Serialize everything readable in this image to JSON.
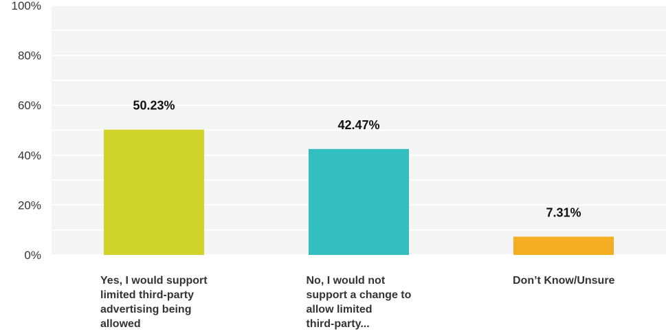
{
  "chart_data": {
    "type": "bar",
    "categories": [
      "Yes, I would support limited third-party advertising being allowed",
      "No, I would not support a change to allow limited third-party...",
      "Don’t Know/Unsure"
    ],
    "category_lines": [
      [
        "Yes, I would support",
        "limited third-party",
        "advertising being",
        "allowed"
      ],
      [
        "No, I would not",
        "support a change to",
        "allow limited",
        "third-party..."
      ],
      [
        "Don’t Know/Unsure"
      ]
    ],
    "values": [
      50.23,
      42.47,
      7.31
    ],
    "data_labels": [
      "50.23%",
      "42.47%",
      "7.31%"
    ],
    "colors": [
      "#d0d42a",
      "#33bfbf",
      "#f5ad22"
    ],
    "ylim": [
      0,
      100
    ],
    "yticks": [
      "0%",
      "20%",
      "40%",
      "60%",
      "80%",
      "100%"
    ],
    "grid": true,
    "title": "",
    "xlabel": "",
    "ylabel": ""
  }
}
